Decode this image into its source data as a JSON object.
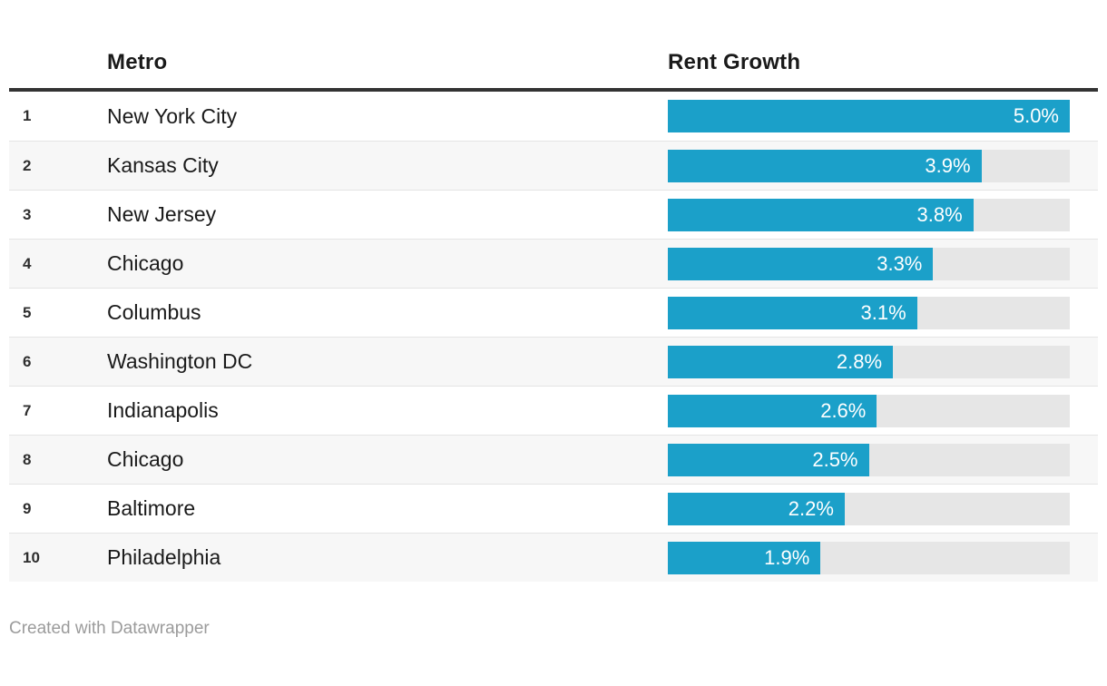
{
  "table": {
    "columns": {
      "metro": "Metro",
      "value": "Rent Growth"
    },
    "max_value": 5.0,
    "rows": [
      {
        "rank": "1",
        "metro": "New York City",
        "value": 5.0,
        "value_label": "5.0%"
      },
      {
        "rank": "2",
        "metro": "Kansas City",
        "value": 3.9,
        "value_label": "3.9%"
      },
      {
        "rank": "3",
        "metro": "New Jersey",
        "value": 3.8,
        "value_label": "3.8%"
      },
      {
        "rank": "4",
        "metro": "Chicago",
        "value": 3.3,
        "value_label": "3.3%"
      },
      {
        "rank": "5",
        "metro": "Columbus",
        "value": 3.1,
        "value_label": "3.1%"
      },
      {
        "rank": "6",
        "metro": "Washington DC",
        "value": 2.8,
        "value_label": "2.8%"
      },
      {
        "rank": "7",
        "metro": "Indianapolis",
        "value": 2.6,
        "value_label": "2.6%"
      },
      {
        "rank": "8",
        "metro": "Chicago",
        "value": 2.5,
        "value_label": "2.5%"
      },
      {
        "rank": "9",
        "metro": "Baltimore",
        "value": 2.2,
        "value_label": "2.2%"
      },
      {
        "rank": "10",
        "metro": "Philadelphia",
        "value": 1.9,
        "value_label": "1.9%"
      }
    ]
  },
  "chart_data": {
    "type": "bar",
    "orientation": "horizontal",
    "columns": [
      "Metro",
      "Rent Growth"
    ],
    "categories": [
      "New York City",
      "Kansas City",
      "New Jersey",
      "Chicago",
      "Columbus",
      "Washington DC",
      "Indianapolis",
      "Chicago",
      "Baltimore",
      "Philadelphia"
    ],
    "ranks": [
      1,
      2,
      3,
      4,
      5,
      6,
      7,
      8,
      9,
      10
    ],
    "values": [
      5.0,
      3.9,
      3.8,
      3.3,
      3.1,
      2.8,
      2.6,
      2.5,
      2.2,
      1.9
    ],
    "value_labels": [
      "5.0%",
      "3.9%",
      "3.8%",
      "3.3%",
      "3.1%",
      "2.8%",
      "2.6%",
      "2.5%",
      "2.2%",
      "1.9%"
    ],
    "xlim": [
      0,
      5.0
    ],
    "legend": "none",
    "grid": false
  },
  "footer": {
    "attribution": "Created with Datawrapper"
  },
  "colors": {
    "bar": "#1BA0C9",
    "track": "#E6E6E6",
    "zebra": "#F7F7F7",
    "separator": "#E4E4E4",
    "header_border": "#333333",
    "text": "#1A1A1A",
    "bar_label": "#FFFFFF",
    "footer_text": "#9B9B9B"
  }
}
